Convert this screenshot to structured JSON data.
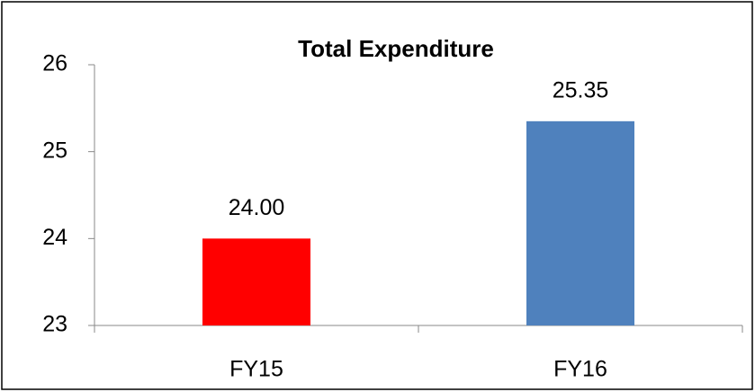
{
  "chart_data": {
    "type": "bar",
    "title": "Total Expenditure",
    "categories": [
      "FY15",
      "FY16"
    ],
    "values": [
      24,
      25.35
    ],
    "value_labels": [
      "24.00",
      "25.35"
    ],
    "colors": [
      "#ff0000",
      "#4f81bd"
    ],
    "ylim": [
      23,
      26
    ],
    "yticks": [
      23,
      24,
      25,
      26
    ],
    "grid": false
  }
}
